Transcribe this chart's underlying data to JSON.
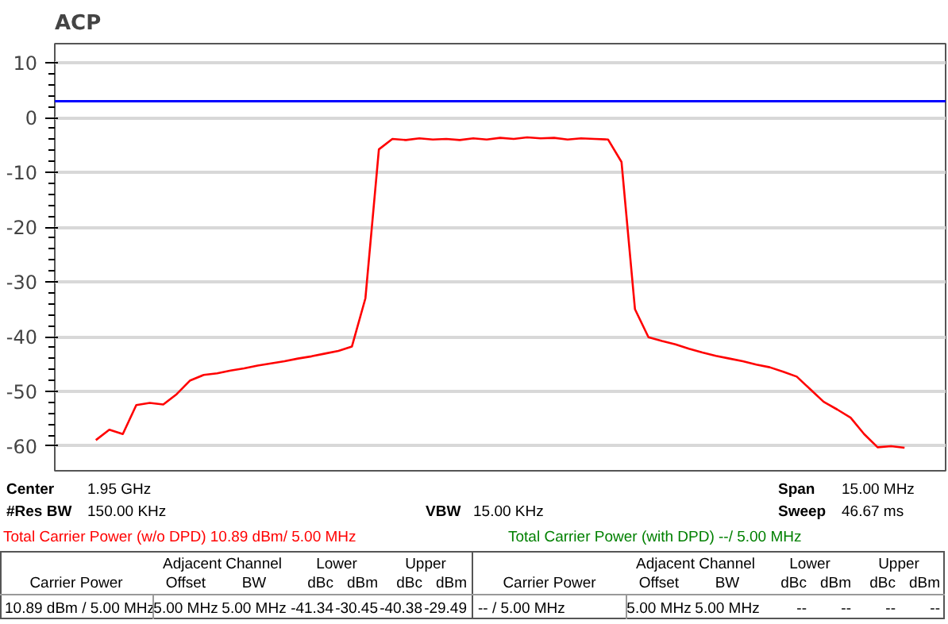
{
  "chart_data": {
    "type": "line",
    "title": "ACP",
    "categories": [
      null,
      null,
      null,
      null,
      null,
      null,
      null,
      null,
      null,
      null,
      null,
      null,
      null,
      null,
      null,
      null,
      null,
      null,
      null,
      null,
      null,
      null,
      null,
      null,
      null,
      null,
      null,
      null,
      null,
      null,
      null,
      null,
      null,
      null,
      null,
      null,
      null,
      null,
      null,
      null,
      null,
      null,
      null,
      null,
      null,
      null,
      null,
      null,
      null,
      null,
      null,
      null,
      null,
      null,
      null,
      null,
      null,
      null,
      null,
      null,
      null
    ],
    "series": [
      {
        "color": "#ff0000",
        "values": [
          -58.9,
          -57,
          -57.8,
          -52.5,
          -52.1,
          -52.4,
          -50.5,
          -48,
          -47,
          -46.7,
          -46.2,
          -45.8,
          -45.3,
          -44.9,
          -44.5,
          -44.0,
          -43.6,
          -43.1,
          -42.6,
          -41.8,
          -33,
          -5.8,
          -3.9,
          -4.1,
          -3.8,
          -4.0,
          -3.9,
          -4.1,
          -3.8,
          -4.0,
          -3.7,
          -3.9,
          -3.6,
          -3.8,
          -3.7,
          -4.0,
          -3.8,
          -3.9,
          -4.0,
          -8.1,
          -35,
          -40.1,
          -40.8,
          -41.4,
          -42.2,
          -42.9,
          -43.5,
          -44.0,
          -44.5,
          -45.1,
          -45.6,
          -46.4,
          -47.3,
          -49.6,
          -51.9,
          -53.3,
          -54.8,
          -57.8,
          -60.2,
          -60.0,
          -60.3
        ]
      }
    ],
    "ylim": [
      -64.5,
      13.5
    ],
    "yticks": [
      -60,
      -50,
      -40,
      -30,
      -20,
      -10,
      0,
      10
    ],
    "tick_labels": "y",
    "grid": "y",
    "ref_lines": [
      {
        "axis": "y",
        "value": 3,
        "color": "#0000ff"
      }
    ],
    "annotations": [
      "Center",
      "1.95 GHz",
      "Span",
      "15.00 MHz",
      "#Res BW",
      "150.00 KHz",
      "VBW",
      "15.00 KHz",
      "Sweep",
      "46.67 ms",
      "Total Carrier Power (w/o DPD) 10.89 dBm/ 5.00 MHz",
      "Total Carrier Power (with DPD) --/ 5.00 MHz",
      "Adjacent Channel",
      "Lower",
      "Upper",
      "Carrier Power",
      "Offset",
      "BW",
      "dBc",
      "dBm",
      "dBc",
      "dBm",
      "10.89 dBm / 5.00 MHz",
      "5.00 MHz",
      "5.00 MHz",
      "-41.34",
      "-30.45",
      "-40.38",
      "-29.49",
      "Adjacent Channel",
      "Lower",
      "Upper",
      "Carrier Power",
      "Offset",
      "BW",
      "dBc",
      "dBm",
      "dBc",
      "dBm",
      "-- / 5.00 MHz",
      "5.00 MHz",
      "5.00 MHz",
      "--",
      "--",
      "--",
      "--"
    ]
  }
}
